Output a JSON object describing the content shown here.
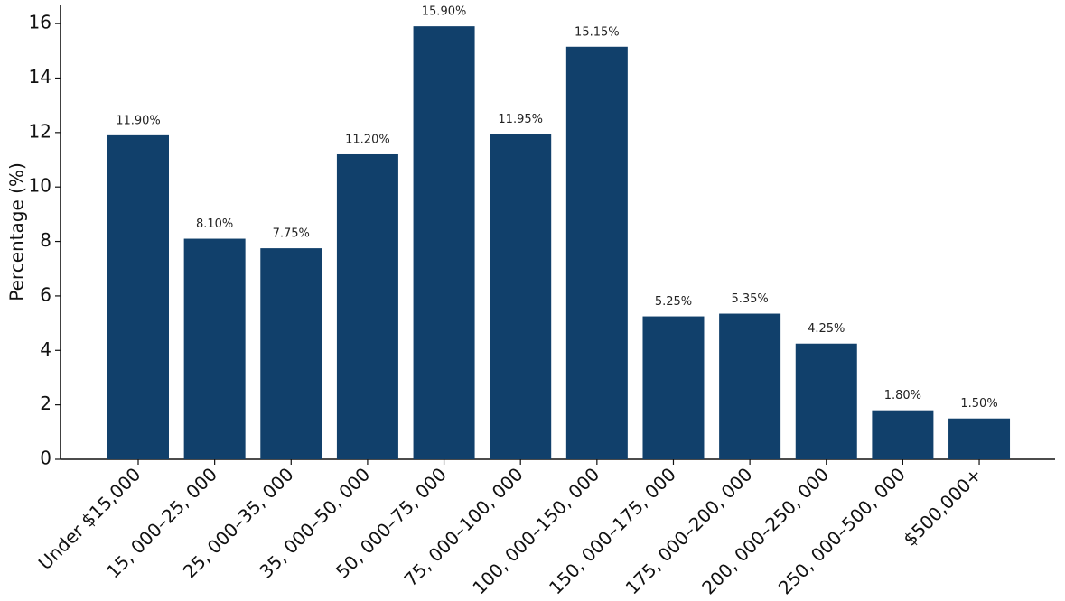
{
  "chart_data": {
    "type": "bar",
    "y_label": "Percentage (%)",
    "categories": [
      "Under $15,000",
      "15, 000–25, 000",
      "25, 000–35, 000",
      "35, 000–50, 000",
      "50, 000–75, 000",
      "75, 000–100, 000",
      "100, 000–150, 000",
      "150, 000–175, 000",
      "175, 000–200, 000",
      "200, 000–250, 000",
      "250, 000–500, 000",
      "$500,000+"
    ],
    "values": [
      11.9,
      8.1,
      7.75,
      11.2,
      15.9,
      11.95,
      15.15,
      5.25,
      5.35,
      4.25,
      1.8,
      1.5
    ],
    "value_labels": [
      "11.90%",
      "8.10%",
      "7.75%",
      "11.20%",
      "15.90%",
      "11.95%",
      "15.15%",
      "5.25%",
      "5.35%",
      "4.25%",
      "1.80%",
      "1.50%"
    ],
    "color": "#11406b",
    "ylim": [
      0,
      16.7
    ],
    "yticks": [
      0,
      2,
      4,
      6,
      8,
      10,
      12,
      14,
      16
    ]
  }
}
